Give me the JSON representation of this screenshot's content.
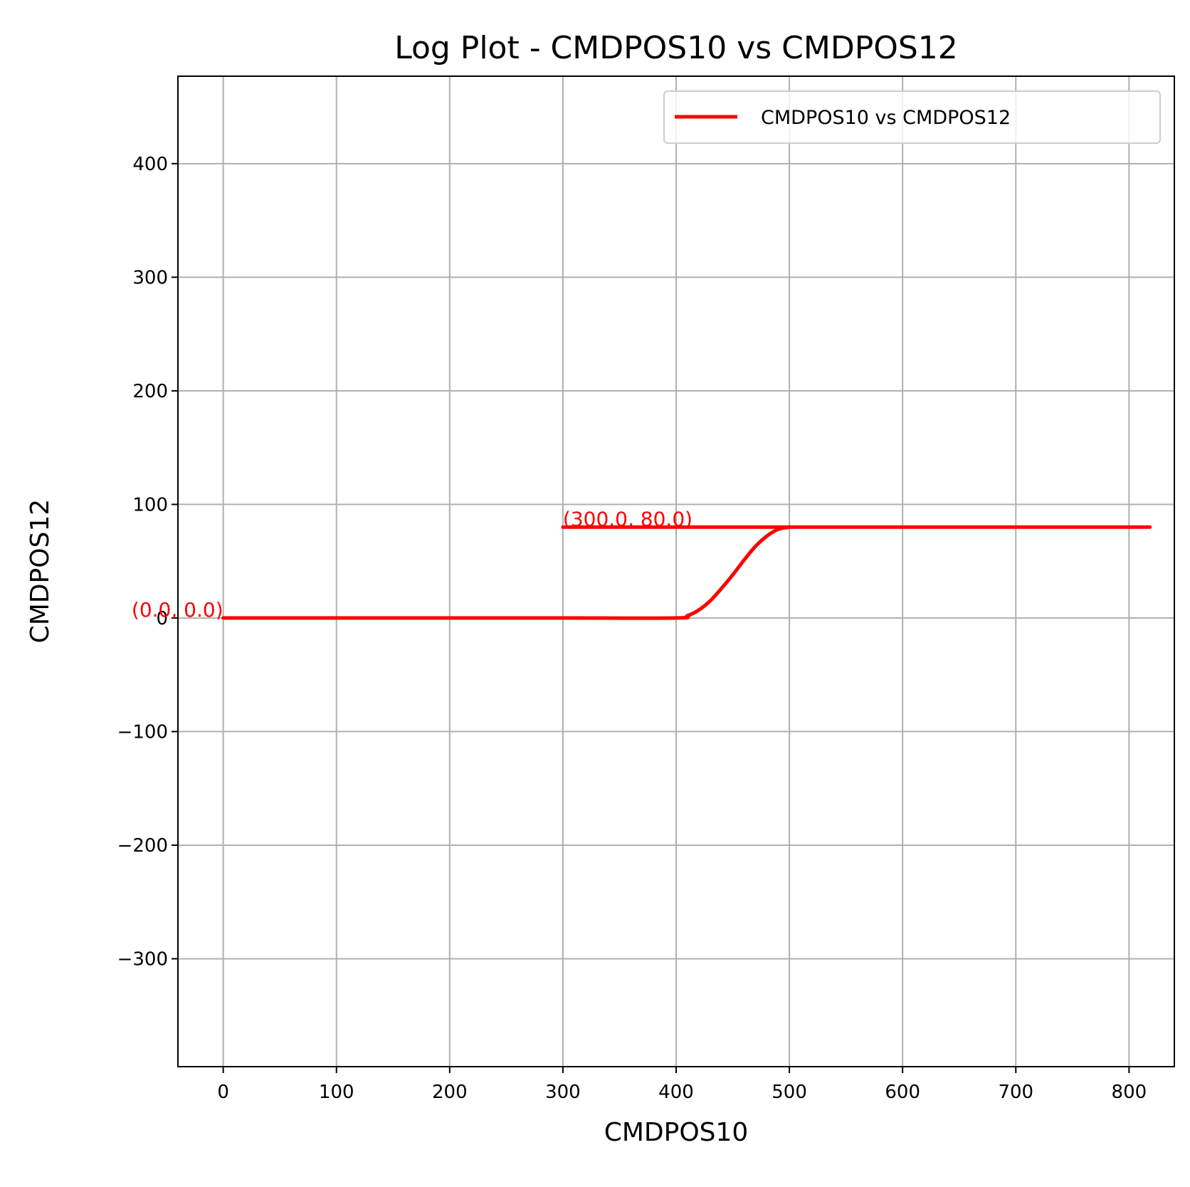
{
  "chart_data": {
    "type": "line",
    "title": "Log Plot - CMDPOS10 vs CMDPOS12",
    "xlabel": "CMDPOS10",
    "ylabel": "CMDPOS12",
    "xlim": [
      -40,
      840
    ],
    "ylim": [
      -395,
      477
    ],
    "xticks": [
      0,
      100,
      200,
      300,
      400,
      500,
      600,
      700,
      800
    ],
    "yticks": [
      -300,
      -200,
      -100,
      0,
      100,
      200,
      300,
      400
    ],
    "xtick_labels": [
      "0",
      "100",
      "200",
      "300",
      "400",
      "500",
      "600",
      "700",
      "800"
    ],
    "ytick_labels": [
      "−300",
      "−200",
      "−100",
      "0",
      "100",
      "200",
      "300",
      "400"
    ],
    "grid": true,
    "legend": {
      "position": "top-right",
      "entries": [
        "CMDPOS10 vs CMDPOS12"
      ]
    },
    "series": [
      {
        "name": "CMDPOS10 vs CMDPOS12",
        "color": "#ff0000",
        "x": [
          0,
          100,
          200,
          300,
          400,
          410,
          420,
          430,
          440,
          450,
          460,
          470,
          480,
          490,
          500,
          510,
          600,
          700,
          800,
          300
        ],
        "y": [
          0,
          0,
          0,
          0,
          0,
          2,
          7,
          15,
          26,
          38,
          51,
          63,
          72,
          78,
          80,
          80,
          80,
          80,
          80,
          80
        ]
      }
    ],
    "annotations": [
      {
        "text": "(0.0, 0.0)",
        "x": 0,
        "y": 0,
        "color": "#ff0000"
      },
      {
        "text": "(300.0, 80.0)",
        "x": 300,
        "y": 80,
        "color": "#ff0000"
      }
    ]
  }
}
